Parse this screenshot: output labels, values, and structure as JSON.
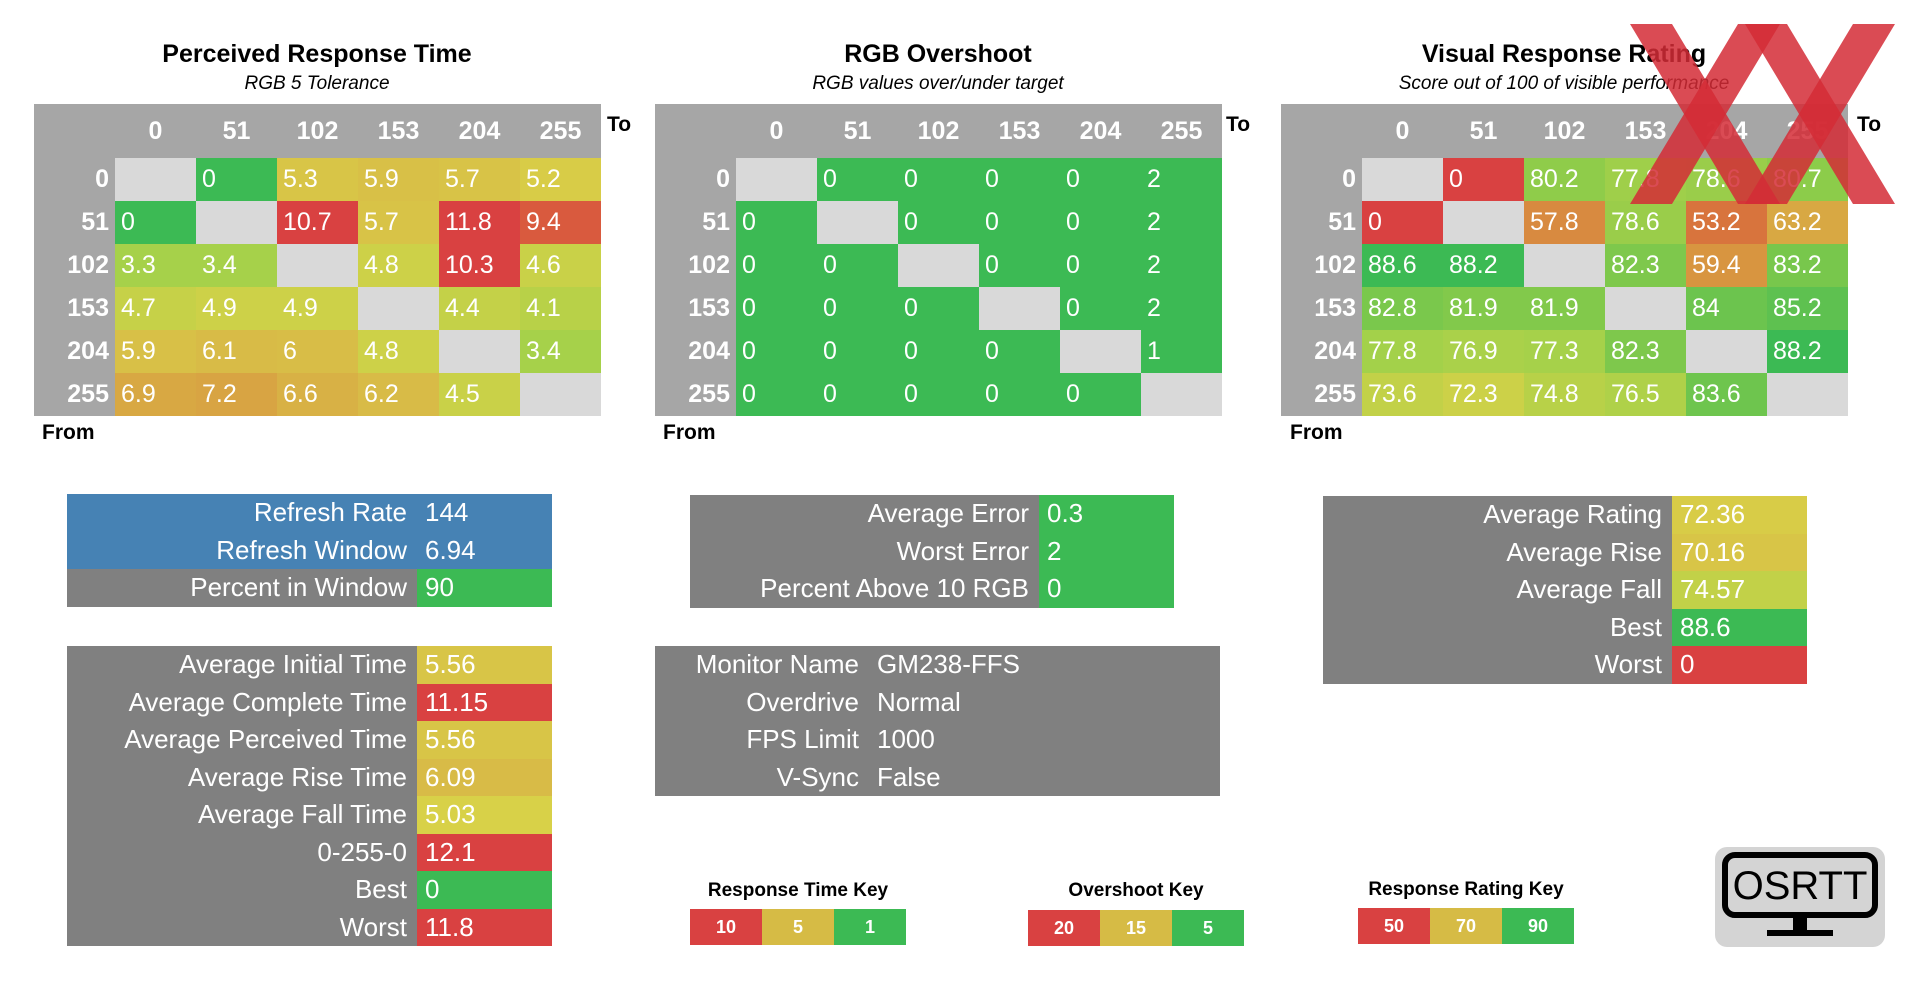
{
  "colors": {
    "green": "#3cba54",
    "lightgreen": "#93cb4a",
    "yellowgreen": "#bfd14a",
    "yellow": "#d8d148",
    "gold": "#d6bb45",
    "orange": "#d89a40",
    "darkorange": "#d77d3a",
    "red": "#d94141",
    "blue": "#4682b4",
    "grey": "#808080"
  },
  "axis": {
    "to": "To",
    "from": "From"
  },
  "levels": [
    "0",
    "51",
    "102",
    "153",
    "204",
    "255"
  ],
  "perceived": {
    "title": "Perceived Response Time",
    "subtitle": "RGB 5 Tolerance",
    "rows": [
      [
        null,
        "0",
        "5.3",
        "5.9",
        "5.7",
        "5.2"
      ],
      [
        "0",
        null,
        "10.7",
        "5.7",
        "11.8",
        "9.4"
      ],
      [
        "3.3",
        "3.4",
        null,
        "4.8",
        "10.3",
        "4.6"
      ],
      [
        "4.7",
        "4.9",
        "4.9",
        null,
        "4.4",
        "4.1"
      ],
      [
        "5.9",
        "6.1",
        "6",
        "4.8",
        null,
        "3.4"
      ],
      [
        "6.9",
        "7.2",
        "6.6",
        "6.2",
        "4.5",
        null
      ]
    ],
    "cell_colors": [
      [
        "",
        "#3cba54",
        "#d8c547",
        "#d8c047",
        "#d8c347",
        "#d8cc47"
      ],
      [
        "#3cba54",
        "",
        "#d94141",
        "#d8c347",
        "#d94141",
        "#d95a3e"
      ],
      [
        "#a6d14a",
        "#a6d14a",
        "",
        "#cdd148",
        "#d94141",
        "#c9d148"
      ],
      [
        "#c6d148",
        "#cdd148",
        "#cdd148",
        "",
        "#c4d148",
        "#b8d148"
      ],
      [
        "#d8c047",
        "#d8bb47",
        "#d8bd47",
        "#cdd148",
        "",
        "#a6d14a"
      ],
      [
        "#d8a843",
        "#d8a443",
        "#d8b145",
        "#d8bb47",
        "#c9d148",
        ""
      ]
    ]
  },
  "overshoot": {
    "title": "RGB Overshoot",
    "subtitle": "RGB values over/under target",
    "rows": [
      [
        null,
        "0",
        "0",
        "0",
        "0",
        "2"
      ],
      [
        "0",
        null,
        "0",
        "0",
        "0",
        "2"
      ],
      [
        "0",
        "0",
        null,
        "0",
        "0",
        "2"
      ],
      [
        "0",
        "0",
        "0",
        null,
        "0",
        "2"
      ],
      [
        "0",
        "0",
        "0",
        "0",
        null,
        "1"
      ],
      [
        "0",
        "0",
        "0",
        "0",
        "0",
        null
      ]
    ]
  },
  "rating": {
    "title": "Visual Response Rating",
    "subtitle": "Score out of 100 of visible performance",
    "rows": [
      [
        null,
        "0",
        "80.2",
        "77.8",
        "78.6",
        "80.7"
      ],
      [
        "0",
        null,
        "57.8",
        "78.6",
        "53.2",
        "63.2"
      ],
      [
        "88.6",
        "88.2",
        null,
        "82.3",
        "59.4",
        "83.2"
      ],
      [
        "82.8",
        "81.9",
        "81.9",
        null,
        "84",
        "85.2"
      ],
      [
        "77.8",
        "76.9",
        "77.3",
        "82.3",
        null,
        "88.2"
      ],
      [
        "73.6",
        "72.3",
        "74.8",
        "76.5",
        "83.6",
        null
      ]
    ],
    "cell_colors": [
      [
        "",
        "#d94141",
        "#8fcc4a",
        "#9fcf4a",
        "#9acd4a",
        "#8ccc4a"
      ],
      [
        "#d94141",
        "",
        "#d88a40",
        "#9acd4a",
        "#d8743d",
        "#d8a843"
      ],
      [
        "#3cba54",
        "#3cba54",
        "",
        "#7ec84c",
        "#d89540",
        "#78c74c"
      ],
      [
        "#7ac84c",
        "#82c94b",
        "#82c94b",
        "",
        "#6cc44e",
        "#5ec150"
      ],
      [
        "#a3d14a",
        "#aad14a",
        "#a6d14a",
        "#7ec84c",
        "",
        "#3cba54"
      ],
      [
        "#c2d148",
        "#ccd148",
        "#b8d148",
        "#afd149",
        "#6ec54e",
        ""
      ]
    ]
  },
  "refresh_stats": {
    "rows": [
      {
        "label": "Refresh Rate",
        "value": "144"
      },
      {
        "label": "Refresh Window",
        "value": "6.94"
      },
      {
        "label": "Percent in Window",
        "value": "90"
      }
    ]
  },
  "time_stats": {
    "rows": [
      {
        "label": "Average Initial Time",
        "value": "5.56",
        "color": "#d8c547"
      },
      {
        "label": "Average Complete Time",
        "value": "11.15",
        "color": "#d94141"
      },
      {
        "label": "Average Perceived Time",
        "value": "5.56",
        "color": "#d8c547"
      },
      {
        "label": "Average Rise Time",
        "value": "6.09",
        "color": "#d8bb47"
      },
      {
        "label": "Average Fall Time",
        "value": "5.03",
        "color": "#d8d148"
      },
      {
        "label": "0-255-0",
        "value": "12.1",
        "color": "#d94141"
      },
      {
        "label": "Best",
        "value": "0",
        "color": "#3cba54"
      },
      {
        "label": "Worst",
        "value": "11.8",
        "color": "#d94141"
      }
    ]
  },
  "error_stats": {
    "rows": [
      {
        "label": "Average Error",
        "value": "0.3"
      },
      {
        "label": "Worst Error",
        "value": "2"
      },
      {
        "label": "Percent Above 10 RGB",
        "value": "0"
      }
    ]
  },
  "monitor_info": {
    "rows": [
      {
        "label": "Monitor Name",
        "value": "GM238-FFS"
      },
      {
        "label": "Overdrive",
        "value": "Normal"
      },
      {
        "label": "FPS Limit",
        "value": "1000"
      },
      {
        "label": "V-Sync",
        "value": "False"
      }
    ]
  },
  "rating_stats": {
    "rows": [
      {
        "label": "Average Rating",
        "value": "72.36",
        "color": "#d8cc47"
      },
      {
        "label": "Average Rise",
        "value": "70.16",
        "color": "#d8c547"
      },
      {
        "label": "Average Fall",
        "value": "74.57",
        "color": "#c2d148"
      },
      {
        "label": "Best",
        "value": "88.6",
        "color": "#3cba54"
      },
      {
        "label": "Worst",
        "value": "0",
        "color": "#d94141"
      }
    ]
  },
  "keys": {
    "response_time": {
      "title": "Response Time Key",
      "items": [
        {
          "label": "10",
          "color": "#d94141"
        },
        {
          "label": "5",
          "color": "#d6bb45"
        },
        {
          "label": "1",
          "color": "#3cba54"
        }
      ]
    },
    "overshoot": {
      "title": "Overshoot Key",
      "items": [
        {
          "label": "20",
          "color": "#d94141"
        },
        {
          "label": "15",
          "color": "#d6bb45"
        },
        {
          "label": "5",
          "color": "#3cba54"
        }
      ]
    },
    "rating": {
      "title": "Response Rating Key",
      "items": [
        {
          "label": "50",
          "color": "#d94141"
        },
        {
          "label": "70",
          "color": "#d6bb45"
        },
        {
          "label": "90",
          "color": "#3cba54"
        }
      ]
    }
  },
  "logo": {
    "text": "OSRTT",
    "icon": "monitor-logo-icon"
  },
  "overlay": {
    "icon": "red-x-icon",
    "color": "#d42b36"
  }
}
